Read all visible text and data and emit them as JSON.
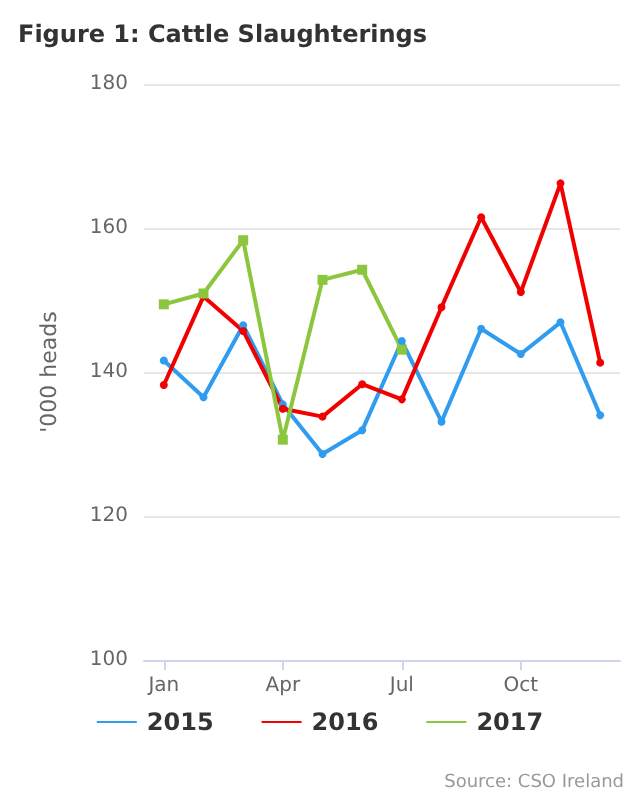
{
  "chart_data": {
    "type": "line",
    "title": "Figure 1: Cattle Slaughterings",
    "ylabel": "'000 heads",
    "categories": [
      "Jan",
      null,
      null,
      "Apr",
      null,
      null,
      "Jul",
      null,
      null,
      "Oct",
      null,
      null
    ],
    "series": [
      {
        "name": "2015",
        "color": "#2f9cf0",
        "marker": "circle",
        "values": [
          141.6,
          136.5,
          146.5,
          135.5,
          128.6,
          131.9,
          144.3,
          133.1,
          146,
          142.5,
          146.9,
          134
        ]
      },
      {
        "name": "2016",
        "color": "#f20000",
        "marker": "circle",
        "values": [
          138.2,
          150.5,
          145.7,
          134.9,
          133.8,
          138.3,
          136.2,
          149,
          161.5,
          151.1,
          166.2,
          141.3
        ]
      },
      {
        "name": "2017",
        "color": "#8cc63e",
        "marker": "square",
        "values": [
          149.4,
          150.9,
          158.3,
          130.6,
          152.8,
          154.2,
          143.1,
          null,
          null,
          null,
          null,
          null
        ]
      }
    ],
    "ylim": [
      100,
      180
    ],
    "yticks": [
      100,
      120,
      140,
      160,
      180
    ],
    "grid": "y",
    "legend": "bottom",
    "annotations": [
      "Source: CSO Ireland"
    ]
  }
}
